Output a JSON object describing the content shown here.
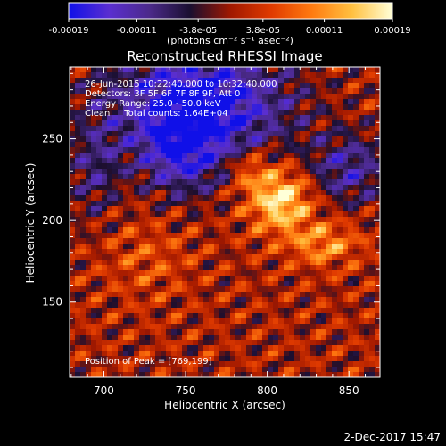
{
  "chart_data": {
    "type": "heatmap",
    "title": "Reconstructed RHESSI Image",
    "xlabel": "Heliocentric X (arcsec)",
    "ylabel": "Heliocentric Y (arcsec)",
    "x_ticks": [
      "700",
      "750",
      "800",
      "850"
    ],
    "y_ticks": [
      "150",
      "200",
      "250"
    ],
    "x_tick_values": [
      700,
      750,
      800,
      850
    ],
    "y_tick_values": [
      150,
      200,
      250
    ],
    "xlim": [
      679,
      869
    ],
    "ylim": [
      104,
      294
    ],
    "annotations": [
      "26-Jun-2015 10:22:40.000 to 10:32:40.000",
      "Detectors: 3F 5F 6F 7F 8F 9F, Att 0",
      "Energy Range: 25.0 - 50.0 keV",
      "Clean     Total counts: 1.64E+04"
    ],
    "peak_label": "Position of Peak = [769,199]",
    "colorbar": {
      "ticks": [
        "-0.00019",
        "-0.00011",
        "-3.8e-05",
        "3.8e-05",
        "0.00011",
        "0.00019"
      ],
      "tick_values": [
        -0.00019,
        -0.00011,
        -3.8e-05,
        3.8e-05,
        0.00011,
        0.00019
      ],
      "range": [
        -0.00019,
        0.00019
      ],
      "label": "(photons cm⁻² s⁻¹ asec⁻²)"
    },
    "colors": [
      "#1010e8",
      "#5a2ed0",
      "#4b2a8a",
      "#1a0f30",
      "#a01800",
      "#e03a00",
      "#ff7a10",
      "#ffc040",
      "#ffffd8"
    ]
  },
  "footer": {
    "date": "2-Dec-2017 15:47"
  }
}
